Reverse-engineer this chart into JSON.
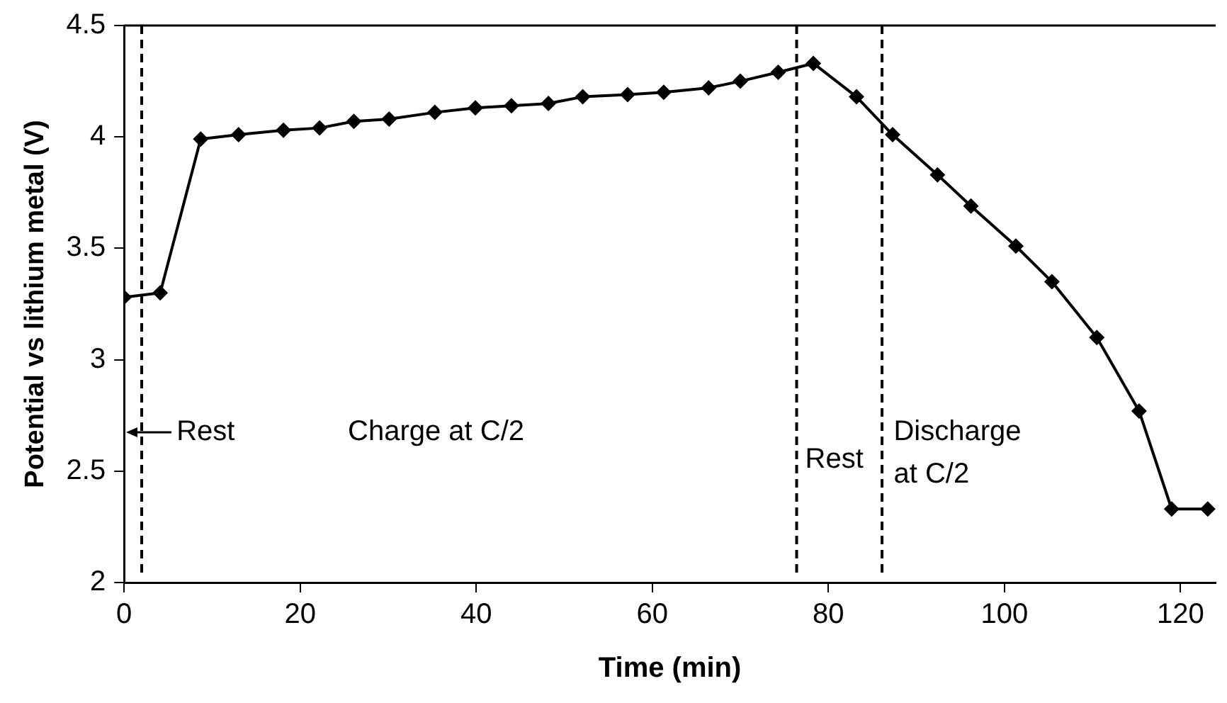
{
  "chart_data": {
    "type": "line",
    "xlabel": "Time (min)",
    "ylabel": "Potential vs lithium metal (V)",
    "x": [
      0,
      4.1,
      8.7,
      13,
      18.1,
      22.2,
      26.1,
      30.1,
      35.3,
      39.9,
      44,
      48.2,
      52.1,
      57.2,
      61.3,
      66.4,
      70,
      74.3,
      78.3,
      83.2,
      87.3,
      92.4,
      96.2,
      101.3,
      105.4,
      110.5,
      115.3,
      119,
      123.1
    ],
    "series": [
      {
        "color": "#000000",
        "values": [
          3.28,
          3.3,
          3.99,
          4.01,
          4.03,
          4.04,
          4.07,
          4.08,
          4.11,
          4.13,
          4.14,
          4.15,
          4.18,
          4.19,
          4.2,
          4.22,
          4.25,
          4.29,
          4.33,
          4.18,
          4.01,
          3.83,
          3.69,
          3.51,
          3.35,
          3.1,
          2.77,
          2.33,
          2.33
        ]
      }
    ],
    "xlim": [
      0,
      124
    ],
    "xticks": [
      0,
      20,
      40,
      60,
      80,
      100,
      120
    ],
    "ylim": [
      2,
      4.5
    ],
    "yticks": [
      2,
      2.5,
      3,
      3.5,
      4,
      4.5
    ],
    "marker": "diamond",
    "line_style": "solid",
    "grid": false,
    "legend": false,
    "ref_lines": [
      {
        "axis": "x",
        "value": 2,
        "line_style": "dashed",
        "color": "#000000"
      },
      {
        "axis": "x",
        "value": 76.4,
        "line_style": "dashed",
        "color": "#000000"
      },
      {
        "axis": "x",
        "value": 86.1,
        "line_style": "dashed",
        "color": "#000000"
      }
    ],
    "annotations": [
      "Rest",
      "Charge at C/2",
      {
        "text": "Rest",
        "x": 76.4,
        "y": 2.55
      },
      "Discharge\nat C/2"
    ]
  }
}
